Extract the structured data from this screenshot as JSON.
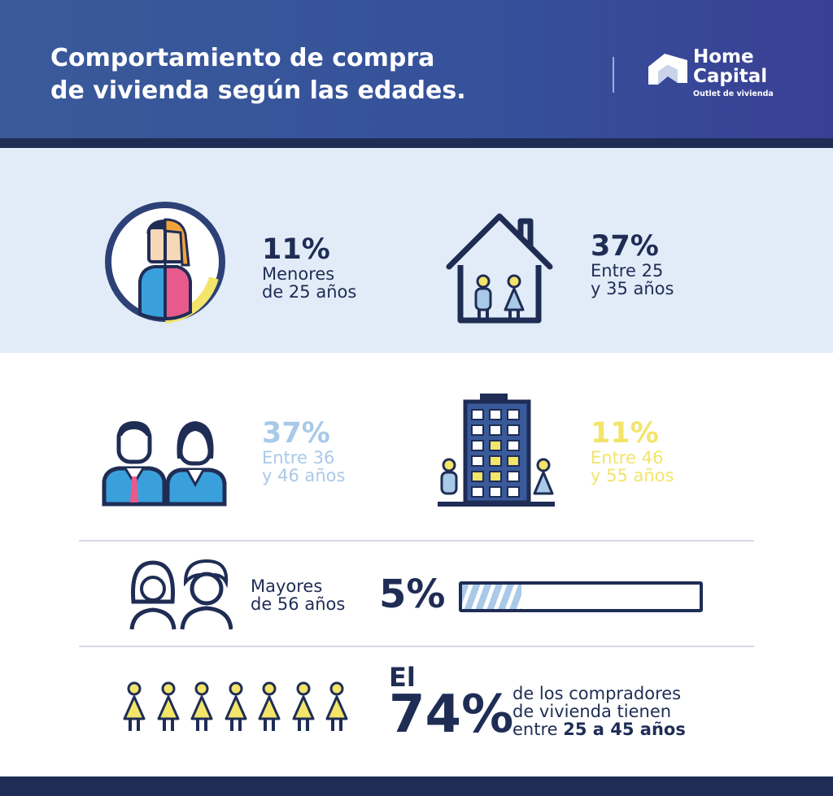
{
  "header": {
    "title_line1": "Comportamiento de compra",
    "title_line2": "de vivienda según las edades.",
    "brand_line1": "Home",
    "brand_line2": "Capital",
    "brand_tagline": "Outlet de vivienda"
  },
  "stats": [
    {
      "pct": "11%",
      "label_line1": "Menores",
      "label_line2": "de 25 años",
      "color": "#1f2d55"
    },
    {
      "pct": "37%",
      "label_line1": "Entre 25",
      "label_line2": "y 35 años",
      "color": "#1f2d55"
    },
    {
      "pct": "37%",
      "label_line1": "Entre 36",
      "label_line2": "y 46 años",
      "color": "#a9c9e8"
    },
    {
      "pct": "11%",
      "label_line1": "Entre 46",
      "label_line2": "y 55 años",
      "color": "#f3e46a"
    }
  ],
  "older": {
    "label_line1": "Mayores",
    "label_line2": "de 56 años",
    "pct": "5%",
    "progress": 0.25
  },
  "summary": {
    "lead": "El",
    "pct": "74%",
    "line1": "de los compradores",
    "line2": "de vivienda tienen",
    "line3_prefix": "entre ",
    "line3_bold": "25 a 45 años"
  },
  "colors": {
    "navy": "#1f2d55",
    "blue_light": "#a9c9e8",
    "yellow": "#f3e46a",
    "pink": "#e85a8c",
    "blue_mid": "#3aa0dc"
  },
  "icons": [
    "couple-circle-icon",
    "house-family-icon",
    "business-couple-icon",
    "building-family-icon",
    "seniors-icon",
    "person-icon"
  ]
}
